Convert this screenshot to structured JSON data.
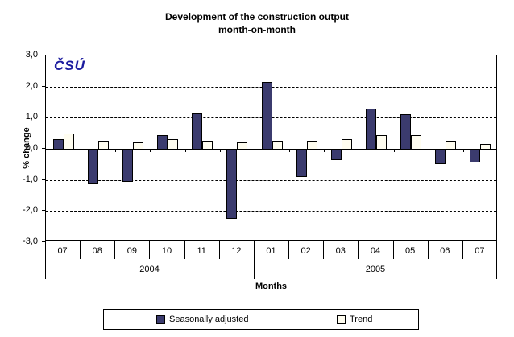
{
  "title": {
    "line1": "Development of the construction output",
    "line2": "month-on-month"
  },
  "logo": "ČSÚ",
  "axis": {
    "y_label": "% change",
    "x_label": "Months"
  },
  "colors": {
    "seasonally_adjusted_fill": "#3B3B6E",
    "trend_fill": "#FFFDF0",
    "axis_and_grid": "#000000",
    "logo_blue": "#1b1b9e"
  },
  "chart_data": {
    "type": "bar",
    "title": "Development of the construction output month-on-month",
    "xlabel": "Months",
    "ylabel": "% change",
    "ylim": [
      -3.0,
      3.0
    ],
    "ytick_step": 1.0,
    "ytick_labels": [
      "3,0",
      "2,0",
      "1,0",
      "0,0",
      "-1,0",
      "-2,0",
      "-3,0"
    ],
    "grid": "horizontal-dashed",
    "legend_position": "bottom",
    "categories": [
      "07",
      "08",
      "09",
      "10",
      "11",
      "12",
      "01",
      "02",
      "03",
      "04",
      "05",
      "06",
      "07"
    ],
    "year_groups": [
      {
        "label": "2004",
        "span": 6
      },
      {
        "label": "2005",
        "span": 7
      }
    ],
    "series": [
      {
        "name": "Seasonally adjusted",
        "color": "#3B3B6E",
        "values": [
          0.3,
          -1.15,
          -1.05,
          0.45,
          1.15,
          -2.25,
          2.15,
          -0.9,
          -0.35,
          1.3,
          1.1,
          -0.5,
          -0.45
        ]
      },
      {
        "name": "Trend",
        "color": "#FFFDF0",
        "values": [
          0.5,
          0.25,
          0.2,
          0.3,
          0.25,
          0.2,
          0.25,
          0.25,
          0.3,
          0.45,
          0.45,
          0.25,
          0.15
        ]
      }
    ]
  }
}
